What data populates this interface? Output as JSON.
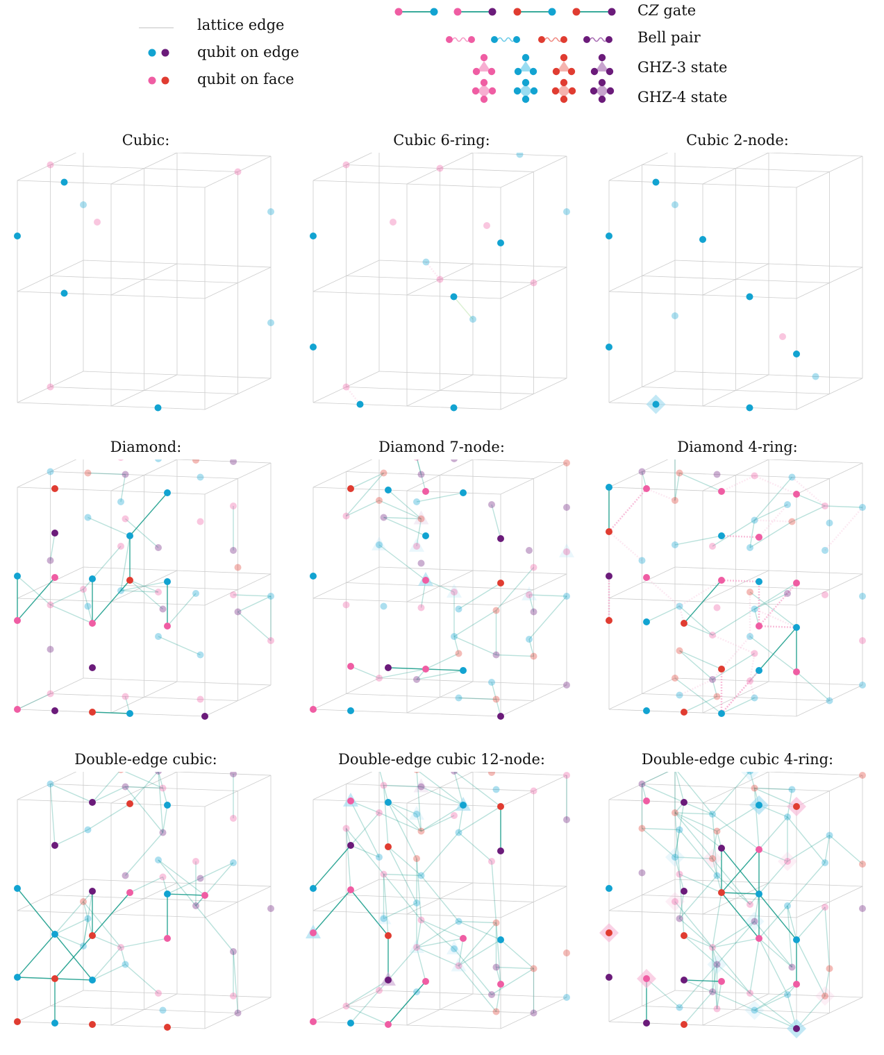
{
  "legend": {
    "lattice_edge": "lattice edge",
    "qubit_on_edge": "qubit on edge",
    "qubit_on_face": "qubit on face",
    "cz_gate_prefix": "C",
    "cz_gate_italic": "Z",
    "cz_gate_suffix": " gate",
    "bell_pair": "Bell pair",
    "ghz3": "GHZ-3 state",
    "ghz4": "GHZ-4 state"
  },
  "colors": {
    "edge_qubit_a": "#12a3d1",
    "edge_qubit_b": "#6b1b7a",
    "face_qubit_a": "#ef5da3",
    "face_qubit_b": "#e03c31",
    "lattice_edge": "#cccccc",
    "cz_edge": "#1b9e8c",
    "green_edge": "#8ccf6d"
  },
  "panels": [
    {
      "title": "Cubic:",
      "lattice": "cubic",
      "resource": "cz"
    },
    {
      "title": "Cubic 6-ring:",
      "lattice": "cubic",
      "resource": "bell"
    },
    {
      "title": "Cubic 2-node:",
      "lattice": "cubic",
      "resource": "ghz4"
    },
    {
      "title": "Diamond:",
      "lattice": "diamond",
      "resource": "cz"
    },
    {
      "title": "Diamond 7-node:",
      "lattice": "diamond",
      "resource": "ghz3"
    },
    {
      "title": "Diamond 4-ring:",
      "lattice": "diamond",
      "resource": "bell"
    },
    {
      "title": "Double-edge cubic:",
      "lattice": "double",
      "resource": "cz"
    },
    {
      "title": "Double-edge cubic 12-node:",
      "lattice": "double",
      "resource": "ghz3"
    },
    {
      "title": "Double-edge cubic 4-ring:",
      "lattice": "double",
      "resource": "ghz4"
    }
  ]
}
